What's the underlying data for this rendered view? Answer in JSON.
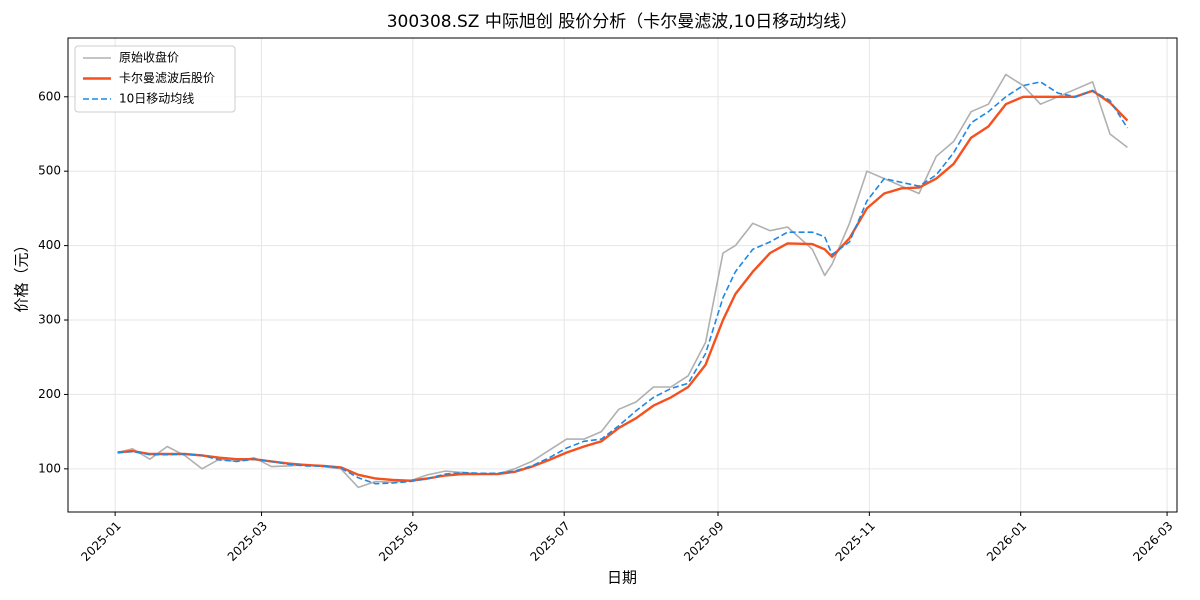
{
  "chart_data": {
    "type": "line",
    "title": "300308.SZ 中际旭创 股价分析（卡尔曼滤波,10日移动均线）",
    "xlabel": "日期",
    "ylabel": "价格（元）",
    "x": [
      "2025-01-02",
      "2025-01-08",
      "2025-01-15",
      "2025-01-22",
      "2025-01-29",
      "2025-02-05",
      "2025-02-12",
      "2025-02-19",
      "2025-02-26",
      "2025-03-05",
      "2025-03-12",
      "2025-03-19",
      "2025-03-26",
      "2025-04-02",
      "2025-04-09",
      "2025-04-16",
      "2025-04-23",
      "2025-04-30",
      "2025-05-07",
      "2025-05-14",
      "2025-05-21",
      "2025-05-28",
      "2025-06-04",
      "2025-06-11",
      "2025-06-18",
      "2025-06-25",
      "2025-07-02",
      "2025-07-09",
      "2025-07-16",
      "2025-07-23",
      "2025-07-30",
      "2025-08-06",
      "2025-08-13",
      "2025-08-20",
      "2025-08-27",
      "2025-09-03",
      "2025-09-08",
      "2025-09-15",
      "2025-09-22",
      "2025-09-29",
      "2025-10-09",
      "2025-10-14",
      "2025-10-17",
      "2025-10-24",
      "2025-10-31",
      "2025-11-07",
      "2025-11-14",
      "2025-11-21",
      "2025-11-28",
      "2025-12-05",
      "2025-12-12",
      "2025-12-19",
      "2025-12-26",
      "2026-01-02",
      "2026-01-09",
      "2026-01-16",
      "2026-01-23",
      "2026-01-30",
      "2026-02-06",
      "2026-02-13"
    ],
    "series": [
      {
        "name": "原始收盘价",
        "color": "#b0b0b0",
        "linestyle": "solid",
        "values": [
          122,
          127,
          113,
          130,
          118,
          100,
          113,
          110,
          115,
          103,
          104,
          106,
          103,
          100,
          75,
          83,
          82,
          84,
          92,
          97,
          95,
          93,
          93,
          100,
          110,
          125,
          140,
          140,
          150,
          180,
          190,
          210,
          210,
          225,
          270,
          390,
          400,
          430,
          420,
          425,
          395,
          360,
          375,
          430,
          500,
          490,
          480,
          470,
          520,
          540,
          580,
          590,
          630,
          615,
          590,
          600,
          610,
          620,
          550,
          532
        ]
      },
      {
        "name": "卡尔曼滤波后股价",
        "color": "#f4511e",
        "linestyle": "solid",
        "values": [
          122,
          124,
          120,
          120,
          120,
          118,
          115,
          113,
          113,
          110,
          107,
          105,
          104,
          102,
          92,
          87,
          85,
          84,
          87,
          91,
          93,
          93,
          93,
          96,
          103,
          112,
          122,
          130,
          137,
          155,
          168,
          185,
          196,
          210,
          240,
          300,
          335,
          365,
          390,
          403,
          402,
          395,
          385,
          410,
          450,
          470,
          477,
          478,
          490,
          510,
          545,
          560,
          590,
          600,
          600,
          600,
          600,
          608,
          592,
          568
        ]
      },
      {
        "name": "10日移动均线",
        "color": "#1e88e5",
        "linestyle": "dashed",
        "values": [
          122,
          123,
          119,
          119,
          120,
          118,
          112,
          110,
          113,
          110,
          106,
          104,
          104,
          101,
          88,
          80,
          81,
          83,
          87,
          93,
          95,
          94,
          94,
          97,
          104,
          115,
          128,
          137,
          140,
          158,
          178,
          196,
          208,
          215,
          255,
          330,
          365,
          395,
          405,
          418,
          418,
          412,
          388,
          405,
          460,
          490,
          485,
          480,
          495,
          525,
          565,
          580,
          600,
          615,
          620,
          605,
          600,
          608,
          595,
          558
        ]
      }
    ],
    "xlim": [
      "2024-12-13",
      "2026-03-05"
    ],
    "xticks": [
      {
        "value": "2025-01-01",
        "label": "2025-01"
      },
      {
        "value": "2025-03-01",
        "label": "2025-03"
      },
      {
        "value": "2025-05-01",
        "label": "2025-05"
      },
      {
        "value": "2025-07-01",
        "label": "2025-07"
      },
      {
        "value": "2025-09-01",
        "label": "2025-09"
      },
      {
        "value": "2025-11-01",
        "label": "2025-11"
      },
      {
        "value": "2026-01-01",
        "label": "2026-01"
      },
      {
        "value": "2026-03-01",
        "label": "2026-03"
      }
    ],
    "ylim": [
      42,
      679
    ],
    "yticks": [
      100,
      200,
      300,
      400,
      500,
      600
    ],
    "grid": true,
    "legend": "upper-left"
  }
}
